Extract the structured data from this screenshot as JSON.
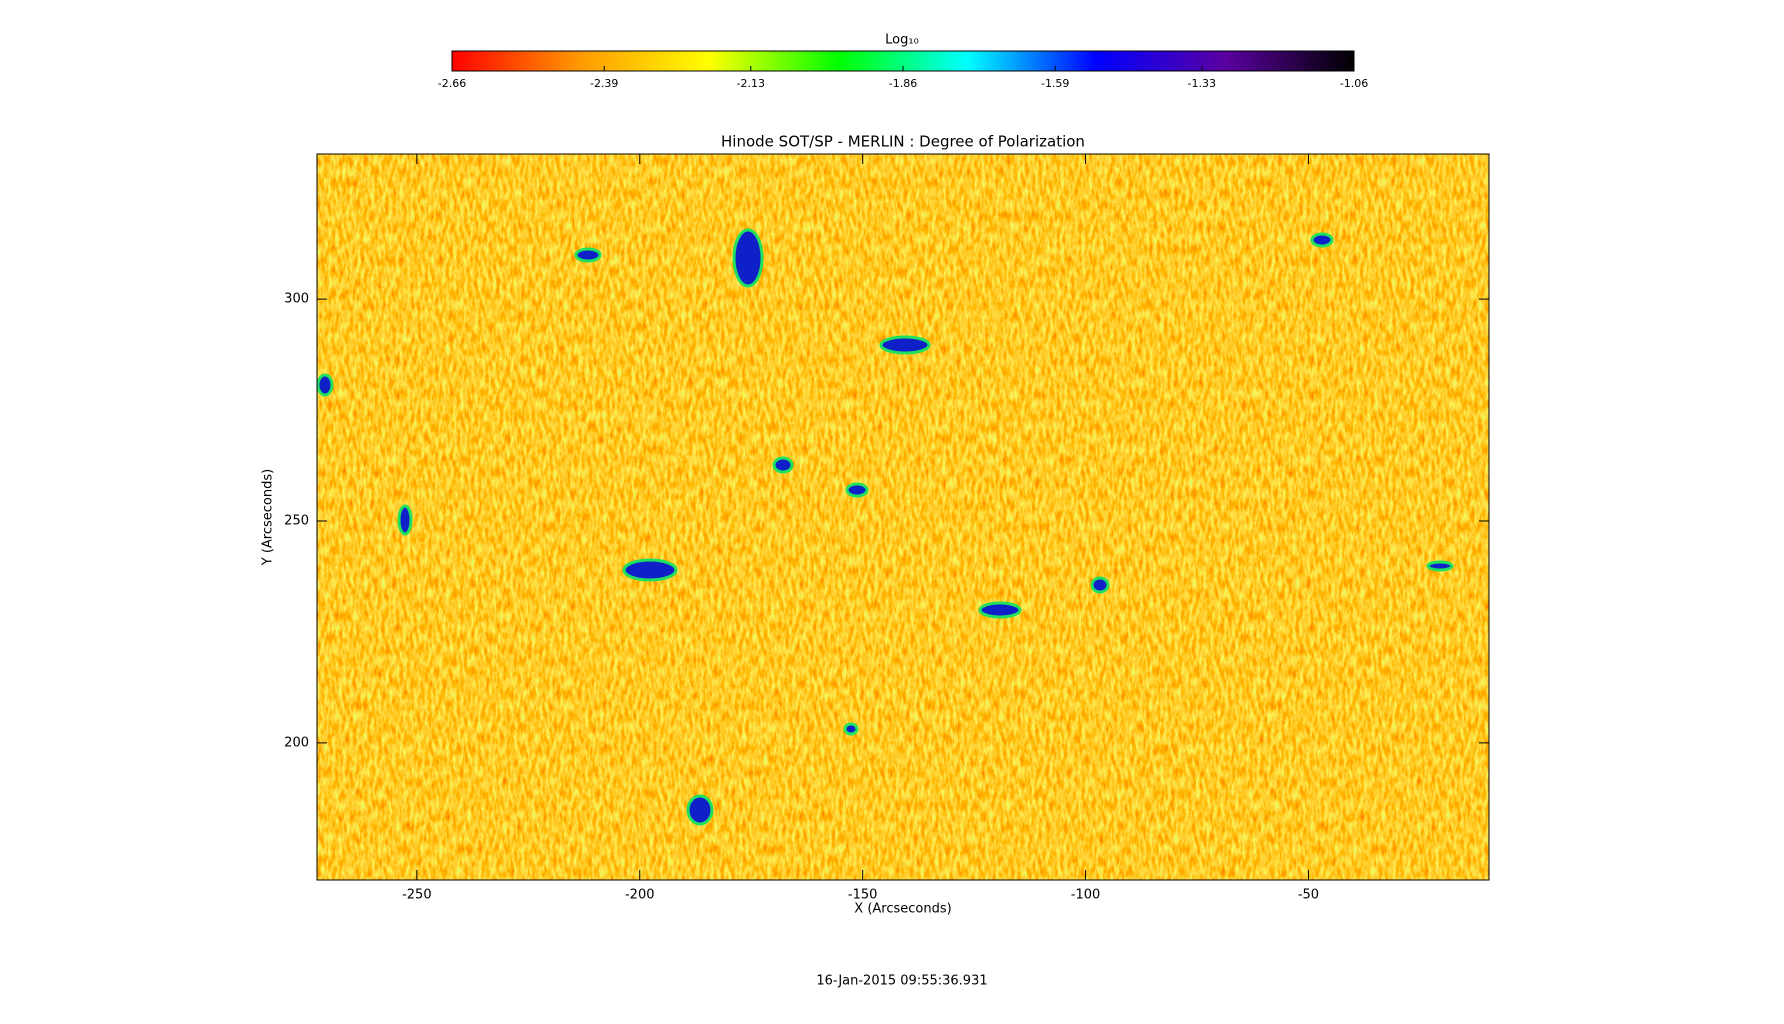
{
  "chart_data": {
    "type": "image",
    "title": "Hinode SOT/SP - MERLIN : Degree of Polarization",
    "xlabel": "X (Arcseconds)",
    "ylabel": "Y (Arcseconds)",
    "xlim": [
      -272.4,
      -9.5
    ],
    "ylim": [
      169.1,
      332.7
    ],
    "xticks": [
      -250,
      -200,
      -150,
      -100,
      -50
    ],
    "yticks": [
      200,
      250,
      300
    ],
    "colorbar": {
      "label": "Log₁₀",
      "lim": [
        -2.66,
        -1.06
      ],
      "ticks": [
        -2.66,
        -2.39,
        -2.13,
        -1.86,
        -1.59,
        -1.33,
        -1.06
      ],
      "colormap": [
        "#ff0000",
        "#ff9a00",
        "#ffff00",
        "#00ff00",
        "#00ffff",
        "#0000ff",
        "#5a00a0",
        "#000000"
      ]
    },
    "timestamp": "16-Jan-2015 09:55:36.931"
  }
}
